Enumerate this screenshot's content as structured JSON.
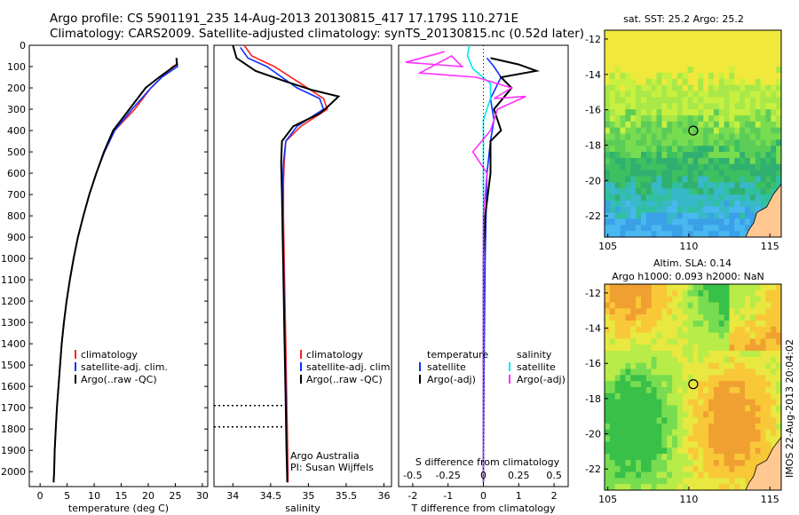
{
  "title_line1": "Argo profile: CS 5901191_235 14-Aug-2013 20130815_417 17.179S 110.271E",
  "title_line2": "Climatology: CARS2009. Satellite-adjusted climatology: synTS_20130815.nc (0.52d later)",
  "colors": {
    "climatology": "#ff2020",
    "satellite": "#1030ff",
    "argo": "#000000",
    "salinity_sat": "#00e8f0",
    "salinity_argo": "#ff30ff",
    "land": "#ffc890"
  },
  "chart_data": [
    {
      "type": "line",
      "panel": "temperature",
      "xlabel": "temperature (deg C)",
      "ylabel": "",
      "xlim": [
        -2,
        31
      ],
      "ylim": [
        2070,
        0
      ],
      "xticks": [
        "0",
        "5",
        "10",
        "15",
        "20",
        "25",
        "30"
      ],
      "yticks": [
        "0",
        "100",
        "200",
        "300",
        "400",
        "500",
        "600",
        "700",
        "800",
        "900",
        "1000",
        "1100",
        "1200",
        "1300",
        "1400",
        "1500",
        "1600",
        "1700",
        "1800",
        "1900",
        "2000"
      ],
      "legend": [
        "climatology",
        "satellite-adj. clim.",
        "Argo(..raw -QC)"
      ],
      "legend_position": "lower-center",
      "series": [
        {
          "name": "climatology",
          "color": "#ff2020",
          "points": [
            [
              25.3,
              60
            ],
            [
              25.3,
              90
            ],
            [
              24.5,
              100
            ],
            [
              20.5,
              200
            ],
            [
              17.5,
              300
            ],
            [
              13.8,
              400
            ],
            [
              11.9,
              500
            ],
            [
              10.4,
              600
            ],
            [
              9.1,
              700
            ],
            [
              8.0,
              800
            ],
            [
              7.0,
              900
            ],
            [
              6.2,
              1000
            ],
            [
              5.5,
              1100
            ],
            [
              4.9,
              1200
            ],
            [
              4.4,
              1300
            ],
            [
              4.0,
              1400
            ],
            [
              3.7,
              1500
            ],
            [
              3.4,
              1600
            ],
            [
              3.1,
              1700
            ],
            [
              2.9,
              1800
            ],
            [
              2.7,
              1900
            ],
            [
              2.6,
              2000
            ],
            [
              2.5,
              2050
            ]
          ]
        },
        {
          "name": "satellite-adj. clim.",
          "color": "#1030ff",
          "points": [
            [
              25.2,
              60
            ],
            [
              25.4,
              100
            ],
            [
              22.5,
              150
            ],
            [
              20.5,
              200
            ],
            [
              17.0,
              300
            ],
            [
              13.8,
              400
            ],
            [
              11.9,
              500
            ],
            [
              10.4,
              600
            ],
            [
              9.1,
              700
            ],
            [
              8.0,
              800
            ],
            [
              7.0,
              900
            ],
            [
              6.2,
              1000
            ],
            [
              5.5,
              1100
            ],
            [
              4.9,
              1200
            ],
            [
              4.4,
              1300
            ],
            [
              4.0,
              1400
            ],
            [
              3.7,
              1500
            ],
            [
              3.4,
              1600
            ],
            [
              3.1,
              1700
            ],
            [
              2.9,
              1800
            ],
            [
              2.7,
              1900
            ],
            [
              2.6,
              2000
            ],
            [
              2.5,
              2050
            ]
          ]
        },
        {
          "name": "Argo(..raw -QC)",
          "color": "#000000",
          "points": [
            [
              25.2,
              60
            ],
            [
              25.3,
              90
            ],
            [
              22.0,
              150
            ],
            [
              19.5,
              200
            ],
            [
              16.5,
              300
            ],
            [
              13.5,
              400
            ],
            [
              11.8,
              500
            ],
            [
              10.4,
              600
            ],
            [
              9.1,
              700
            ],
            [
              8.0,
              800
            ],
            [
              7.0,
              900
            ],
            [
              6.2,
              1000
            ],
            [
              5.5,
              1100
            ],
            [
              4.9,
              1200
            ],
            [
              4.4,
              1300
            ],
            [
              4.0,
              1400
            ],
            [
              3.7,
              1500
            ],
            [
              3.4,
              1600
            ],
            [
              3.1,
              1700
            ],
            [
              2.9,
              1800
            ],
            [
              2.7,
              1900
            ],
            [
              2.6,
              2000
            ],
            [
              2.5,
              2050
            ]
          ]
        }
      ]
    },
    {
      "type": "line",
      "panel": "salinity",
      "xlabel": "salinity",
      "ylabel": "",
      "xlim": [
        33.75,
        36.1
      ],
      "ylim": [
        2070,
        0
      ],
      "xticks": [
        "34",
        "34.5",
        "35",
        "35.5",
        "36"
      ],
      "legend": [
        "climatology",
        "satellite-adj. clim.",
        "Argo(..raw -QC)"
      ],
      "legend_position": "lower-right",
      "annotations": [
        "Argo Australia",
        "PI: Susan Wijffels"
      ],
      "dotted_depths": [
        1690,
        1790
      ],
      "series": [
        {
          "name": "climatology",
          "color": "#ff2020",
          "points": [
            [
              34.15,
              0
            ],
            [
              34.25,
              50
            ],
            [
              34.55,
              100
            ],
            [
              34.9,
              180
            ],
            [
              35.2,
              250
            ],
            [
              35.25,
              300
            ],
            [
              34.9,
              380
            ],
            [
              34.7,
              450
            ],
            [
              34.68,
              550
            ],
            [
              34.67,
              650
            ],
            [
              34.67,
              800
            ],
            [
              34.68,
              1000
            ],
            [
              34.69,
              1200
            ],
            [
              34.7,
              1400
            ],
            [
              34.71,
              1600
            ],
            [
              34.72,
              1800
            ],
            [
              34.73,
              2000
            ],
            [
              34.73,
              2050
            ]
          ]
        },
        {
          "name": "satellite-adj. clim.",
          "color": "#1030ff",
          "points": [
            [
              34.1,
              10
            ],
            [
              34.2,
              60
            ],
            [
              34.45,
              100
            ],
            [
              34.85,
              200
            ],
            [
              35.15,
              250
            ],
            [
              35.2,
              300
            ],
            [
              34.85,
              380
            ],
            [
              34.7,
              450
            ],
            [
              34.67,
              550
            ],
            [
              34.66,
              650
            ],
            [
              34.66,
              800
            ],
            [
              34.67,
              1000
            ],
            [
              34.68,
              1200
            ],
            [
              34.69,
              1400
            ],
            [
              34.7,
              1600
            ],
            [
              34.71,
              1800
            ],
            [
              34.72,
              2000
            ],
            [
              34.72,
              2050
            ]
          ]
        },
        {
          "name": "Argo(..raw -QC)",
          "color": "#000000",
          "points": [
            [
              34.0,
              0
            ],
            [
              34.05,
              60
            ],
            [
              34.3,
              120
            ],
            [
              34.7,
              170
            ],
            [
              35.05,
              210
            ],
            [
              35.4,
              240
            ],
            [
              35.25,
              290
            ],
            [
              35.15,
              320
            ],
            [
              34.8,
              380
            ],
            [
              34.65,
              450
            ],
            [
              34.64,
              550
            ],
            [
              34.65,
              700
            ],
            [
              34.66,
              900
            ],
            [
              34.67,
              1100
            ],
            [
              34.68,
              1300
            ],
            [
              34.69,
              1500
            ],
            [
              34.7,
              1700
            ],
            [
              34.71,
              1900
            ],
            [
              34.72,
              2050
            ]
          ]
        }
      ]
    },
    {
      "type": "line",
      "panel": "difference",
      "xlabel": "T difference from climatology",
      "top_label": "S difference from climatology",
      "xlim": [
        -2.4,
        2.4
      ],
      "ylim": [
        2070,
        0
      ],
      "xticks": [
        "-2",
        "-1",
        "0",
        "1",
        "2"
      ],
      "top_ticks": [
        "-0.5",
        "-0.25",
        "0",
        "0.25",
        "0.5"
      ],
      "legend": [
        "temperature",
        "satellite",
        "Argo(-adj)",
        "salinity",
        "satellite",
        "Argo(-adj)"
      ],
      "legend_position": "lower-center",
      "series": [
        {
          "name": "temperature satellite",
          "color": "#1030ff",
          "points": [
            [
              0.1,
              60
            ],
            [
              0.3,
              100
            ],
            [
              0.5,
              150
            ],
            [
              0.2,
              250
            ],
            [
              0.3,
              350
            ],
            [
              0.2,
              450
            ],
            [
              0.1,
              600
            ],
            [
              0.05,
              1000
            ],
            [
              0.02,
              1500
            ],
            [
              0,
              2050
            ]
          ]
        },
        {
          "name": "temperature Argo(-adj)",
          "color": "#000000",
          "points": [
            [
              0.2,
              60
            ],
            [
              1.0,
              90
            ],
            [
              1.5,
              120
            ],
            [
              0.5,
              150
            ],
            [
              0.8,
              200
            ],
            [
              0.3,
              300
            ],
            [
              0.5,
              400
            ],
            [
              0.2,
              450
            ],
            [
              0.2,
              600
            ],
            [
              0.05,
              800
            ],
            [
              0,
              1000
            ],
            [
              0,
              2050
            ]
          ]
        },
        {
          "name": "salinity satellite",
          "color": "#00e8f0",
          "points": [
            [
              -0.4,
              0
            ],
            [
              -0.45,
              50
            ],
            [
              -0.3,
              110
            ],
            [
              0.2,
              180
            ],
            [
              0.2,
              250
            ],
            [
              0.0,
              350
            ],
            [
              0.0,
              1000
            ],
            [
              0,
              2050
            ]
          ]
        },
        {
          "name": "salinity Argo(-adj)",
          "color": "#ff30ff",
          "points": [
            [
              -1.1,
              30
            ],
            [
              -2.2,
              80
            ],
            [
              -0.6,
              100
            ],
            [
              -0.9,
              50
            ],
            [
              -1.8,
              130
            ],
            [
              -0.2,
              150
            ],
            [
              0.8,
              200
            ],
            [
              0.3,
              250
            ],
            [
              1.2,
              240
            ],
            [
              0.4,
              300
            ],
            [
              0.2,
              400
            ],
            [
              -0.3,
              500
            ],
            [
              0.1,
              600
            ],
            [
              0,
              800
            ],
            [
              0,
              2050
            ]
          ]
        }
      ]
    },
    {
      "type": "heatmap",
      "panel": "sst-map",
      "title": "sat. SST: 25.2 Argo: 25.2",
      "xticks": [
        "105",
        "110",
        "115"
      ],
      "yticks": [
        "-12",
        "-14",
        "-16",
        "-18",
        "-20",
        "-22"
      ],
      "xlim": [
        104.8,
        115.7
      ],
      "ylim": [
        -23.2,
        -11.5
      ],
      "argo_position": [
        110.271,
        -17.179
      ]
    },
    {
      "type": "heatmap",
      "panel": "sla-map",
      "title": "Altim. SLA: 0.14",
      "subtitle": "Argo h1000: 0.093 h2000: NaN",
      "xticks": [
        "105",
        "110",
        "115"
      ],
      "yticks": [
        "-12",
        "-14",
        "-16",
        "-18",
        "-20",
        "-22"
      ],
      "xlim": [
        104.8,
        115.7
      ],
      "ylim": [
        -23.2,
        -11.5
      ],
      "argo_position": [
        110.271,
        -17.179
      ]
    }
  ],
  "footer_stamp": "IMOS 22-Aug-2013 20:04:02"
}
